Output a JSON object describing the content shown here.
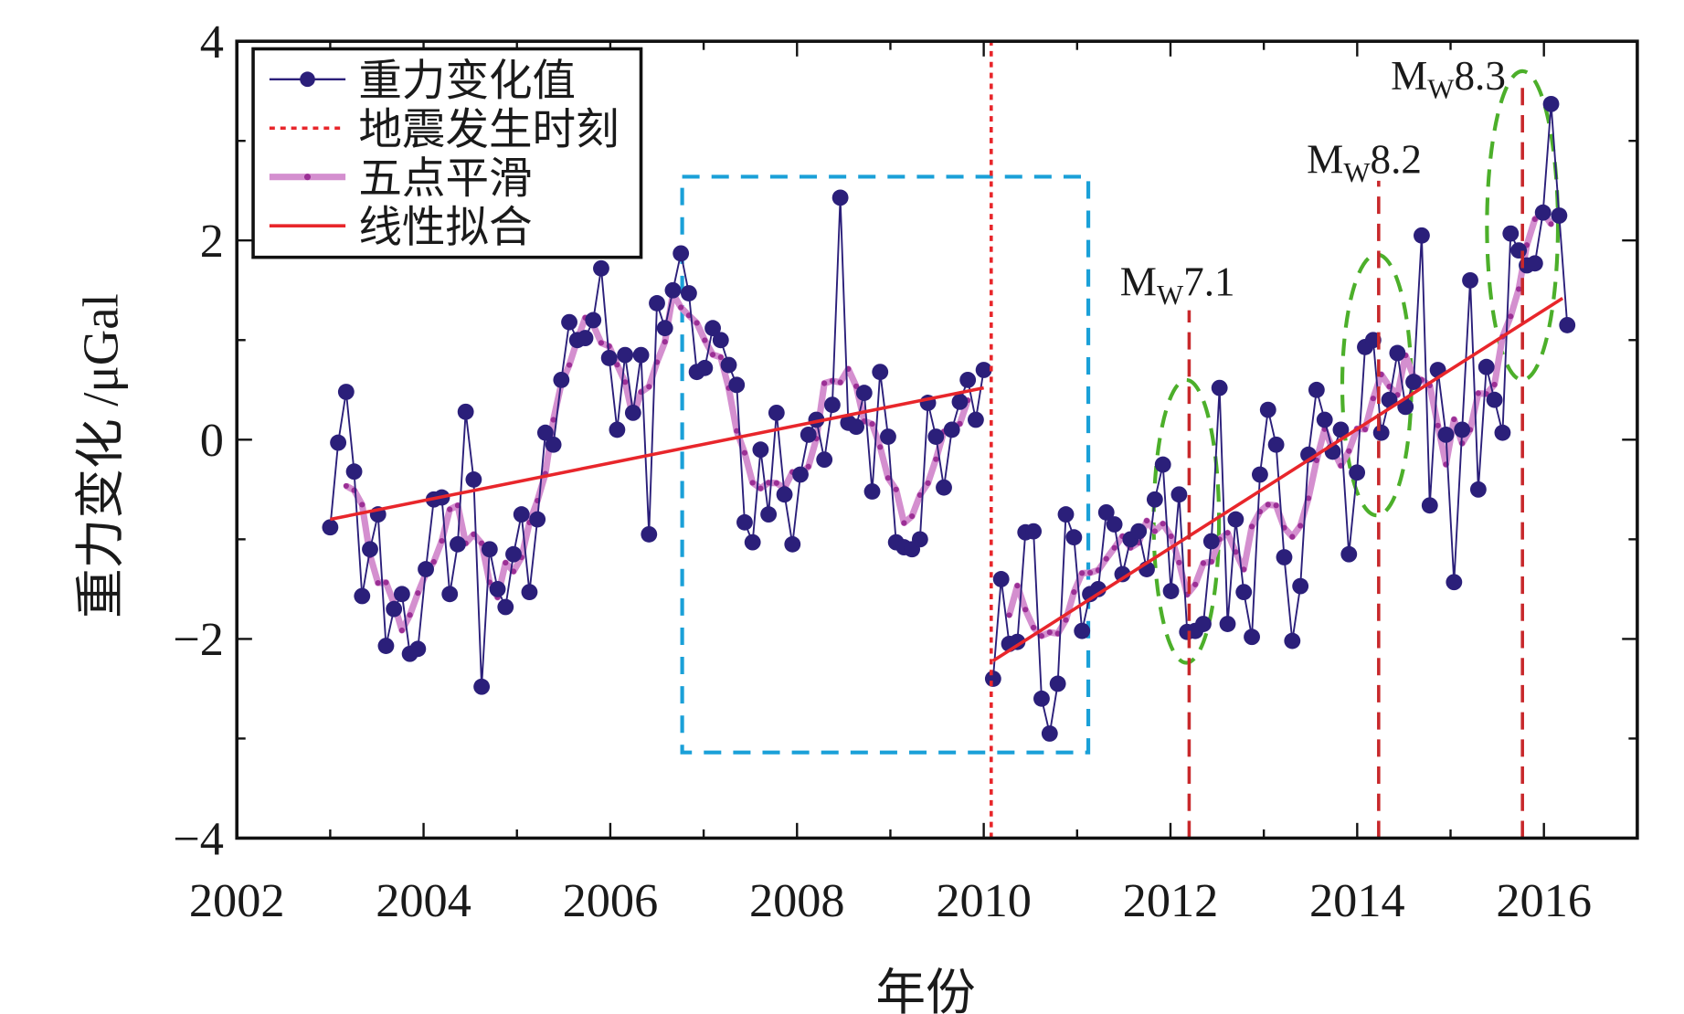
{
  "chart_data": {
    "type": "line",
    "xlabel": "年份",
    "ylabel": "重力变化 /μGal",
    "xlim": [
      2002,
      2017
    ],
    "ylim": [
      -4,
      4
    ],
    "xticks": [
      2002,
      2004,
      2006,
      2008,
      2010,
      2012,
      2014,
      2016
    ],
    "yticks": [
      -4,
      -2,
      0,
      2,
      4
    ],
    "ytick_labels": [
      "−4",
      "−2",
      "0",
      "2",
      "4"
    ],
    "grid": false,
    "legend": {
      "placement": "top-left",
      "entries": [
        "重力变化值",
        "地震发生时刻",
        "五点平滑",
        "线性拟合"
      ]
    },
    "colors": {
      "observed": "#2b1f7a",
      "smooth": "#d48fcf",
      "smooth_marker": "#9b2f95",
      "fit": "#e8262b",
      "quake": "#e8262b",
      "quake_major": "#c8282b",
      "box": "#1aa0d8",
      "ellipse": "#4caf2a"
    },
    "series": [
      {
        "name": "重力变化值",
        "segments": [
          {
            "x_start": 2003.0,
            "x_end": 2010.0,
            "values": [
              -0.88,
              -0.03,
              0.48,
              -0.32,
              -1.57,
              -1.1,
              -0.75,
              -2.07,
              -1.7,
              -1.55,
              -2.15,
              -2.1,
              -1.3,
              -0.6,
              -0.58,
              -1.55,
              -1.05,
              0.28,
              -0.4,
              -2.48,
              -1.1,
              -1.5,
              -1.68,
              -1.15,
              -0.75,
              -1.53,
              -0.8,
              0.07,
              -0.05,
              0.6,
              1.18,
              1.0,
              1.02,
              1.2,
              1.72,
              0.82,
              0.1,
              0.85,
              0.27,
              0.85,
              -0.95,
              1.37,
              1.12,
              1.5,
              1.87,
              1.47,
              0.68,
              0.72,
              1.12,
              1.0,
              0.75,
              0.55,
              -0.83,
              -1.03,
              -0.1,
              -0.75,
              0.27,
              -0.55,
              -1.05,
              -0.35,
              0.05,
              0.2,
              -0.2,
              0.35,
              2.43,
              0.17,
              0.13,
              0.47,
              -0.52,
              0.68,
              0.03,
              -1.03,
              -1.08,
              -1.1,
              -1.0,
              0.37,
              0.03,
              -0.48,
              0.1,
              0.38,
              0.6,
              0.2,
              0.7
            ]
          },
          {
            "x_start": 2010.1,
            "x_end": 2016.25,
            "values": [
              -2.4,
              -1.4,
              -2.05,
              -2.03,
              -0.93,
              -0.92,
              -2.6,
              -2.95,
              -2.45,
              -0.75,
              -0.98,
              -1.92,
              -1.55,
              -1.5,
              -0.73,
              -0.85,
              -1.35,
              -1.0,
              -0.92,
              -1.3,
              -0.6,
              -0.25,
              -1.52,
              -0.55,
              -1.93,
              -1.92,
              -1.85,
              -1.02,
              0.52,
              -1.85,
              -0.8,
              -1.53,
              -1.98,
              -0.35,
              0.3,
              -0.05,
              -1.18,
              -2.02,
              -1.47,
              -0.15,
              0.5,
              0.2,
              -0.12,
              0.1,
              -1.15,
              -0.33,
              0.93,
              1.0,
              0.07,
              0.4,
              0.87,
              0.33,
              0.58,
              2.05,
              -0.66,
              0.7,
              0.05,
              -1.43,
              0.1,
              1.6,
              -0.5,
              0.73,
              0.4,
              0.07,
              2.07,
              1.9,
              1.75,
              1.77,
              2.28,
              3.37,
              2.25,
              1.15
            ]
          }
        ]
      },
      {
        "name": "五点平滑",
        "method": "5-point moving average of 重力变化值"
      },
      {
        "name": "线性拟合",
        "lines": [
          {
            "x": [
              2003.0,
              2010.0
            ],
            "y": [
              -0.8,
              0.52
            ]
          },
          {
            "x": [
              2010.1,
              2016.2
            ],
            "y": [
              -2.22,
              1.42
            ]
          }
        ]
      }
    ],
    "earthquakes": [
      {
        "x": 2010.08,
        "style": "dotted",
        "y_top": 4,
        "label": ""
      },
      {
        "x": 2012.2,
        "style": "dashed",
        "y_top": 1.3,
        "label_main": "M",
        "label_sub": "W",
        "label_mag": "7.1",
        "label_x": 2012.1,
        "label_y": 1.6
      },
      {
        "x": 2014.23,
        "style": "dashed",
        "y_top": 2.6,
        "label_main": "M",
        "label_sub": "W",
        "label_mag": "8.2",
        "label_x": 2014.1,
        "label_y": 2.83
      },
      {
        "x": 2015.77,
        "style": "dashed",
        "y_top": 3.6,
        "label_main": "M",
        "label_sub": "W",
        "label_mag": "8.3",
        "label_x": 2015.0,
        "label_y": 3.67
      }
    ],
    "box": {
      "x": [
        2006.77,
        2011.12
      ],
      "y": [
        -3.14,
        2.64
      ]
    },
    "ellipses": [
      {
        "cx": 2012.17,
        "cy": -0.82,
        "rx": 0.35,
        "ry": 1.42
      },
      {
        "cx": 2014.21,
        "cy": 0.55,
        "rx": 0.37,
        "ry": 1.31
      },
      {
        "cx": 2015.77,
        "cy": 2.15,
        "rx": 0.38,
        "ry": 1.55
      }
    ]
  }
}
